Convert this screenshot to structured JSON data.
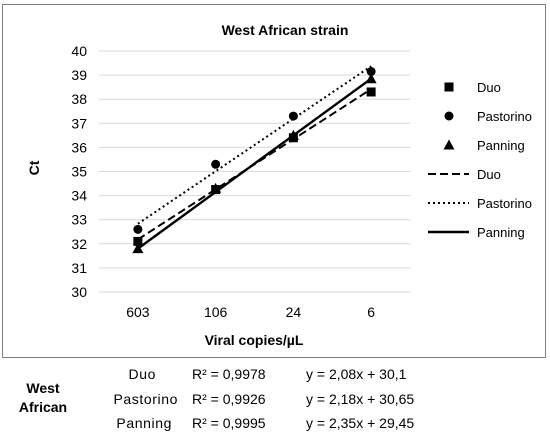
{
  "chart_data": {
    "type": "line",
    "title": "West African strain",
    "xlabel": "Viral copies/µL",
    "ylabel": "Ct",
    "categories": [
      "603",
      "106",
      "24",
      "6"
    ],
    "ylim": [
      30,
      40
    ],
    "yticks": [
      30,
      31,
      32,
      33,
      34,
      35,
      36,
      37,
      38,
      39,
      40
    ],
    "grid": "horizontal",
    "legend_position": "right",
    "series": [
      {
        "name": "Duo",
        "values": [
          32.1,
          34.25,
          36.4,
          38.3
        ],
        "marker": "square",
        "trend": "dashed",
        "trend_values": [
          32.18,
          34.26,
          36.34,
          38.42
        ],
        "color": "#000000"
      },
      {
        "name": "Pastorino",
        "values": [
          32.6,
          35.3,
          37.3,
          39.15
        ],
        "marker": "circle",
        "trend": "dotted",
        "trend_values": [
          32.83,
          35.01,
          37.19,
          39.37
        ],
        "color": "#000000"
      },
      {
        "name": "Panning",
        "values": [
          31.8,
          34.3,
          36.5,
          38.85
        ],
        "marker": "triangle",
        "trend": "solid",
        "trend_values": [
          31.8,
          34.15,
          36.5,
          38.85
        ],
        "color": "#000000"
      }
    ],
    "legend_entries": [
      {
        "label": "Duo",
        "kind": "marker-square"
      },
      {
        "label": "Pastorino",
        "kind": "marker-circle"
      },
      {
        "label": "Panning",
        "kind": "marker-triangle"
      },
      {
        "label": "Duo",
        "kind": "line-dashed"
      },
      {
        "label": "Pastorino",
        "kind": "line-dotted"
      },
      {
        "label": "Panning",
        "kind": "line-solid"
      }
    ]
  },
  "equations": {
    "row_label_line1": "West",
    "row_label_line2": "African",
    "rows": [
      {
        "name": "Duo",
        "r2": "R² = 0,9978",
        "eq": "y = 2,08x + 30,1"
      },
      {
        "name": "Pastorino",
        "r2": "R² = 0,9926",
        "eq": "y = 2,18x + 30,65"
      },
      {
        "name": "Panning",
        "r2": "R² = 0,9995",
        "eq": "y = 2,35x + 29,45"
      }
    ]
  }
}
